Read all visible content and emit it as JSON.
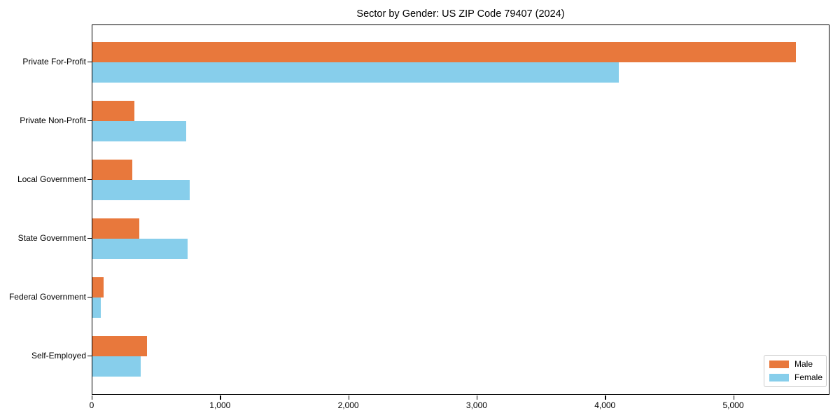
{
  "title": "Sector by Gender: US ZIP Code 79407 (2024)",
  "chart_data": {
    "type": "bar",
    "orientation": "horizontal",
    "title": "Sector by Gender: US ZIP Code 79407 (2024)",
    "categories": [
      "Private For-Profit",
      "Private Non-Profit",
      "Local Government",
      "State Government",
      "Federal Government",
      "Self-Employed"
    ],
    "series": [
      {
        "name": "Male",
        "color": "#e8783c",
        "values": [
          5480,
          330,
          310,
          365,
          90,
          425
        ]
      },
      {
        "name": "Female",
        "color": "#87ceeb",
        "values": [
          4100,
          730,
          760,
          740,
          65,
          375
        ]
      }
    ],
    "xlabel": "",
    "ylabel": "",
    "xlim": [
      0,
      5750
    ],
    "xticks": [
      0,
      1000,
      2000,
      3000,
      4000,
      5000
    ],
    "xtick_labels": [
      "0",
      "1,000",
      "2,000",
      "3,000",
      "4,000",
      "5,000"
    ],
    "grid": false,
    "legend_position": "lower right"
  }
}
